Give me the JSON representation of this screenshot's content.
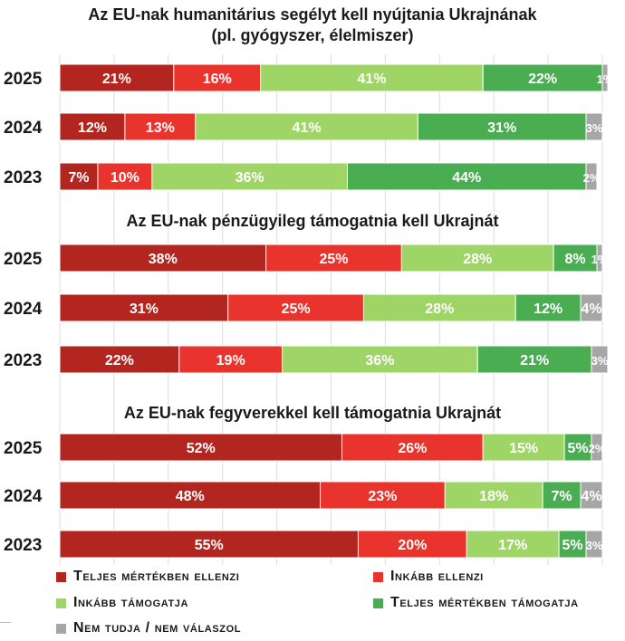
{
  "chart_data": {
    "type": "bar",
    "orientation": "horizontal",
    "stacked": true,
    "grid": true,
    "xlim": [
      0,
      100
    ],
    "categories_legend": [
      {
        "key": "ellenzi_teljes",
        "label": "Teljes mértékben ellenzi",
        "color": "#b32620"
      },
      {
        "key": "ellenzi_inkabb",
        "label": "Inkább ellenzi",
        "color": "#e8342c"
      },
      {
        "key": "tamogatja_inkabb",
        "label": "Inkább támogatja",
        "color": "#9fd466"
      },
      {
        "key": "tamogatja_teljes",
        "label": "Teljes mértékben támogatja",
        "color": "#4aad52"
      },
      {
        "key": "nem_tudja",
        "label": "Nem tudja / nem válaszol",
        "color": "#a6a6a6"
      }
    ],
    "panels": [
      {
        "title": [
          "Az EU-nak humanitárius segélyt kell nyújtania Ukrajnának",
          "(pl. gyógyszer, élelmiszer)"
        ],
        "rows": [
          {
            "year": "2025",
            "values": [
              21,
              16,
              41,
              22,
              1
            ]
          },
          {
            "year": "2024",
            "values": [
              12,
              13,
              41,
              31,
              3
            ]
          },
          {
            "year": "2023",
            "values": [
              7,
              10,
              36,
              44,
              2
            ]
          }
        ]
      },
      {
        "title": [
          "Az EU-nak pénzügyileg támogatnia kell Ukrajnát"
        ],
        "rows": [
          {
            "year": "2025",
            "values": [
              38,
              25,
              28,
              8,
              1
            ]
          },
          {
            "year": "2024",
            "values": [
              31,
              25,
              28,
              12,
              4
            ]
          },
          {
            "year": "2023",
            "values": [
              22,
              19,
              36,
              21,
              3
            ]
          }
        ]
      },
      {
        "title": [
          "Az EU-nak fegyverekkel kell támogatnia Ukrajnát"
        ],
        "rows": [
          {
            "year": "2025",
            "values": [
              52,
              26,
              15,
              5,
              2
            ]
          },
          {
            "year": "2024",
            "values": [
              48,
              23,
              18,
              7,
              4
            ]
          },
          {
            "year": "2023",
            "values": [
              55,
              20,
              17,
              5,
              3
            ]
          }
        ]
      }
    ]
  }
}
